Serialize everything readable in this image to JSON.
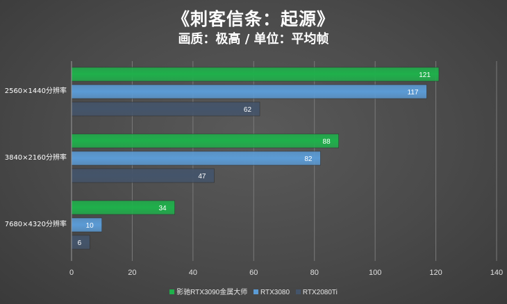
{
  "chart_data": {
    "type": "bar",
    "orientation": "horizontal",
    "title": "《刺客信条：起源》",
    "subtitle": "画质：极高 / 单位：平均帧",
    "categories": [
      "2560×1440分辨率",
      "3840×2160分辨率",
      "7680×4320分辨率"
    ],
    "series": [
      {
        "name": "影驰RTX3090金属大师",
        "values": [
          121,
          88,
          34
        ],
        "color": "#1fb04b"
      },
      {
        "name": "RTX3080",
        "values": [
          117,
          82,
          10
        ],
        "color": "#5b9bd5"
      },
      {
        "name": "RTX2080Ti",
        "values": [
          62,
          47,
          6
        ],
        "color": "#44546a"
      }
    ],
    "xlim": [
      0,
      140
    ],
    "xticks": [
      "0",
      "20",
      "40",
      "60",
      "80",
      "100",
      "120",
      "140"
    ],
    "grid": true,
    "legend_position": "bottom"
  }
}
